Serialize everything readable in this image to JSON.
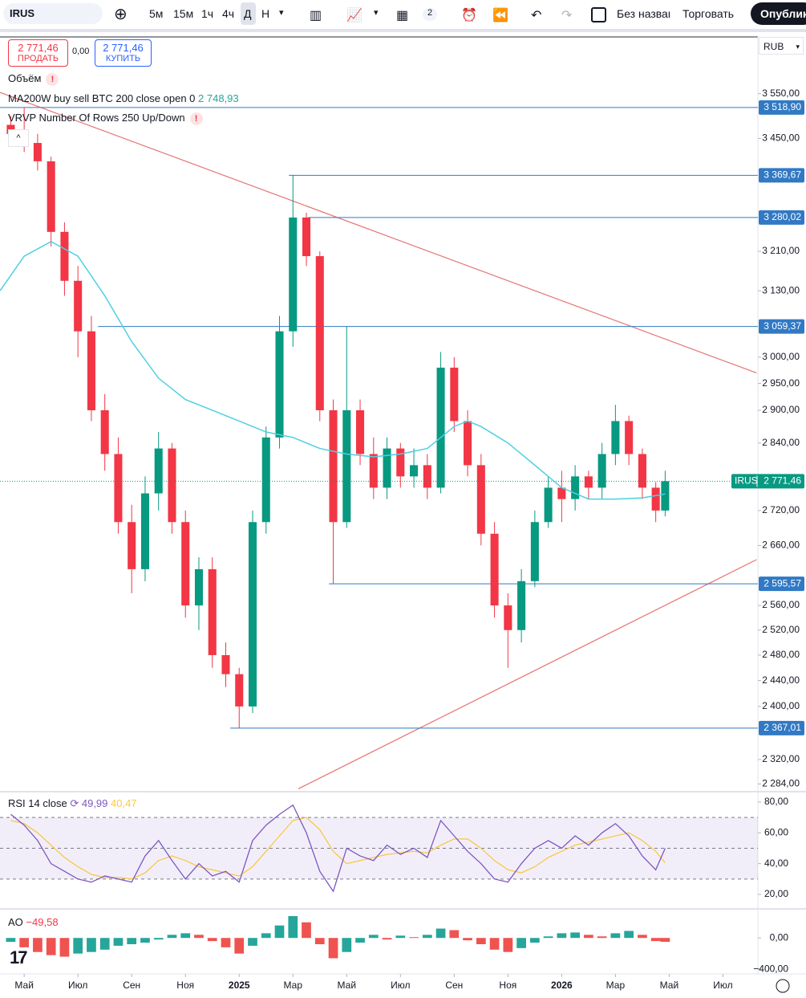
{
  "toolbar": {
    "symbol": "IRUS",
    "intervals": [
      "5м",
      "15м",
      "1ч",
      "4ч",
      "Д",
      "Н"
    ],
    "layout_count": "2",
    "layout_name": "Без названия",
    "trade": "Торговать",
    "publish": "Опубликовать"
  },
  "trade": {
    "sell_price": "2 771,46",
    "sell_label": "ПРОДАТЬ",
    "spread": "0,00",
    "buy_price": "2 771,46",
    "buy_label": "КУПИТЬ"
  },
  "chart_data": [
    {
      "type": "candlestick",
      "symbol": "IRUS",
      "currency": "RUB",
      "log_scale": true,
      "volume_legend": "Объём",
      "vrvp_legend": "VRVP Number Of Rows 250 Up/Down",
      "up_color": "#089981",
      "down_color": "#f23645",
      "xlim": [
        3.1,
        31.3
      ],
      "xticks": [
        {
          "value": 4,
          "label": "Май"
        },
        {
          "value": 6,
          "label": "Июл"
        },
        {
          "value": 8,
          "label": "Сен"
        },
        {
          "value": 10,
          "label": "Ноя"
        },
        {
          "value": 12,
          "label": "2025"
        },
        {
          "value": 14,
          "label": "Мар"
        },
        {
          "value": 16,
          "label": "Май"
        },
        {
          "value": 18,
          "label": "Июл"
        },
        {
          "value": 20,
          "label": "Сен"
        },
        {
          "value": 22,
          "label": "Ноя"
        },
        {
          "value": 24,
          "label": "2026"
        },
        {
          "value": 26,
          "label": "Мар"
        },
        {
          "value": 28,
          "label": "Май"
        },
        {
          "value": 30,
          "label": "Июл"
        }
      ],
      "ylim": [
        2274,
        3683
      ],
      "yticks": [
        {
          "value": 3550,
          "label": "3 550,00"
        },
        {
          "value": 3450,
          "label": "3 450,00"
        },
        {
          "value": 3210,
          "label": "3 210,00"
        },
        {
          "value": 3130,
          "label": "3 130,00"
        },
        {
          "value": 3000,
          "label": "3 000,00"
        },
        {
          "value": 2950,
          "label": "2 950,00"
        },
        {
          "value": 2900,
          "label": "2 900,00"
        },
        {
          "value": 2840,
          "label": "2 840,00"
        },
        {
          "value": 2720,
          "label": "2 720,00"
        },
        {
          "value": 2660,
          "label": "2 660,00"
        },
        {
          "value": 2560,
          "label": "2 560,00"
        },
        {
          "value": 2520,
          "label": "2 520,00"
        },
        {
          "value": 2480,
          "label": "2 480,00"
        },
        {
          "value": 2440,
          "label": "2 440,00"
        },
        {
          "value": 2400,
          "label": "2 400,00"
        },
        {
          "value": 2320,
          "label": "2 320,00"
        },
        {
          "value": 2284,
          "label": "2 284,00"
        }
      ],
      "x": [
        3.5,
        4,
        4.5,
        5,
        5.5,
        6,
        6.5,
        7,
        7.5,
        8,
        8.5,
        9,
        9.5,
        10,
        10.5,
        11,
        11.5,
        12,
        12.5,
        13,
        13.5,
        14,
        14.5,
        15,
        15.5,
        16,
        16.5,
        17,
        17.5,
        18,
        18.5,
        19,
        19.5,
        20,
        20.5,
        21,
        21.5,
        22,
        22.5,
        23,
        23.5,
        24,
        24.5,
        25,
        25.5,
        26,
        26.5,
        27,
        27.5,
        27.85
      ],
      "open": [
        3480,
        3460,
        3440,
        3400,
        3250,
        3150,
        3050,
        2900,
        2820,
        2700,
        2620,
        2750,
        2830,
        2700,
        2560,
        2620,
        2480,
        2450,
        2400,
        2700,
        2850,
        3050,
        3280,
        3200,
        2900,
        2700,
        2900,
        2820,
        2760,
        2830,
        2780,
        2800,
        2760,
        2980,
        2880,
        2800,
        2680,
        2560,
        2520,
        2600,
        2700,
        2760,
        2740,
        2780,
        2760,
        2820,
        2880,
        2820,
        2760,
        2720
      ],
      "high": [
        3500,
        3518.9,
        3460,
        3410,
        3270,
        3180,
        3080,
        2930,
        2850,
        2730,
        2780,
        2860,
        2840,
        2720,
        2640,
        2640,
        2500,
        2460,
        2720,
        2870,
        3080,
        3369.67,
        3290,
        3210,
        2920,
        3059.37,
        2920,
        2850,
        2850,
        2840,
        2830,
        2820,
        3010,
        3000,
        2900,
        2820,
        2700,
        2580,
        2620,
        2720,
        2780,
        2790,
        2800,
        2790,
        2840,
        2910,
        2890,
        2830,
        2770,
        2790
      ],
      "low": [
        3440,
        3420,
        3380,
        3220,
        3120,
        3000,
        2880,
        2790,
        2680,
        2580,
        2600,
        2720,
        2680,
        2540,
        2520,
        2460,
        2430,
        2367.01,
        2390,
        2680,
        2830,
        3020,
        3180,
        2880,
        2595.57,
        2690,
        2800,
        2740,
        2740,
        2760,
        2760,
        2740,
        2750,
        2860,
        2780,
        2660,
        2540,
        2460,
        2500,
        2590,
        2690,
        2700,
        2720,
        2740,
        2740,
        2800,
        2800,
        2740,
        2700,
        2710
      ],
      "close": [
        3460,
        3440,
        3400,
        3250,
        3150,
        3050,
        2900,
        2820,
        2700,
        2620,
        2750,
        2830,
        2700,
        2560,
        2620,
        2480,
        2450,
        2400,
        2700,
        2850,
        3050,
        3280,
        3200,
        2900,
        2700,
        2900,
        2820,
        2760,
        2830,
        2780,
        2800,
        2760,
        2980,
        2880,
        2800,
        2680,
        2560,
        2520,
        2600,
        2700,
        2760,
        2740,
        2780,
        2760,
        2820,
        2880,
        2820,
        2760,
        2720,
        2771.46
      ],
      "last": {
        "value": 2771.46,
        "label": "2 771,46"
      },
      "ma": {
        "name": "MA200W buy sell BTC 200 close open 0",
        "value_label": "2 748,93",
        "color": "#4dd0e1",
        "x": [
          3.1,
          4,
          5,
          6,
          7,
          8,
          9,
          10,
          11,
          12,
          13,
          14,
          15,
          16,
          17,
          18,
          19,
          20,
          20.5,
          21,
          22,
          23,
          24,
          25,
          26,
          27,
          27.85
        ],
        "values": [
          3130,
          3200,
          3230,
          3200,
          3120,
          3030,
          2960,
          2920,
          2900,
          2880,
          2860,
          2850,
          2830,
          2820,
          2815,
          2820,
          2830,
          2870,
          2880,
          2870,
          2840,
          2800,
          2760,
          2740,
          2740,
          2742,
          2748.93
        ]
      },
      "levels_color": "#3179c4",
      "levels": [
        {
          "value": 3518.9,
          "label": "3 518,90",
          "from": 3.1
        },
        {
          "value": 3369.67,
          "label": "3 369,67",
          "from": 13.85
        },
        {
          "value": 3280.02,
          "label": "3 280,02",
          "from": 14.57
        },
        {
          "value": 3059.37,
          "label": "3 059,37",
          "from": 6.75
        },
        {
          "value": 2595.57,
          "label": "2 595,57",
          "from": 15.34
        },
        {
          "value": 2367.01,
          "label": "2 367,01",
          "from": 11.67
        }
      ],
      "trendline_color": "#e57373",
      "trendlines": [
        {
          "x": [
            3.1,
            31.25
          ],
          "y": [
            3553,
            2970
          ]
        },
        {
          "x": [
            14.2,
            31.25
          ],
          "y": [
            2277,
            2636
          ]
        }
      ]
    },
    {
      "type": "line",
      "title": "RSI 14 close",
      "ylim": [
        12.7,
        85.7
      ],
      "yticks": [
        {
          "value": 80,
          "label": "80,00"
        },
        {
          "value": 60,
          "label": "60,00"
        },
        {
          "value": 40,
          "label": "40,00"
        },
        {
          "value": 20,
          "label": "20,00"
        }
      ],
      "band": [
        30,
        70
      ],
      "levels": [
        70,
        50,
        30
      ],
      "band_color": "#7e57c2",
      "series": [
        {
          "name": "RSI",
          "color": "#7e57c2",
          "value_label": "49,99",
          "values": [
            72,
            65,
            55,
            40,
            35,
            30,
            28,
            32,
            30,
            28,
            45,
            55,
            42,
            30,
            40,
            32,
            35,
            28,
            55,
            65,
            72,
            78,
            60,
            35,
            22,
            50,
            45,
            42,
            52,
            46,
            50,
            44,
            68,
            58,
            48,
            40,
            30,
            28,
            40,
            50,
            55,
            50,
            58,
            52,
            60,
            66,
            58,
            45,
            36,
            49.99
          ]
        },
        {
          "name": "RSI MA",
          "color": "#f7c948",
          "value_label": "40,47",
          "values": [
            68,
            66,
            60,
            52,
            44,
            38,
            33,
            31,
            31,
            30,
            34,
            42,
            45,
            42,
            38,
            36,
            34,
            32,
            38,
            48,
            58,
            68,
            70,
            62,
            48,
            40,
            42,
            44,
            46,
            47,
            48,
            47,
            52,
            56,
            56,
            50,
            42,
            36,
            34,
            38,
            44,
            48,
            52,
            54,
            56,
            58,
            60,
            55,
            48,
            40.47
          ]
        }
      ]
    },
    {
      "type": "bar",
      "title": "AO",
      "value_label": "−49,58",
      "ylim": [
        -440,
        290
      ],
      "yticks": [
        {
          "value": 0,
          "label": "0,00"
        },
        {
          "value": -400,
          "label": "−400,00"
        }
      ],
      "up_color": "#26a69a",
      "down_color": "#ef5350",
      "values": [
        -50,
        -120,
        -180,
        -220,
        -240,
        -200,
        -180,
        -150,
        -100,
        -80,
        -60,
        -20,
        40,
        60,
        40,
        -40,
        -120,
        -200,
        -100,
        60,
        160,
        280,
        200,
        -80,
        -260,
        -180,
        -60,
        40,
        -20,
        30,
        10,
        40,
        120,
        100,
        -30,
        -80,
        -150,
        -180,
        -130,
        -60,
        20,
        60,
        70,
        40,
        20,
        60,
        90,
        40,
        -40,
        -49.58
      ]
    }
  ]
}
